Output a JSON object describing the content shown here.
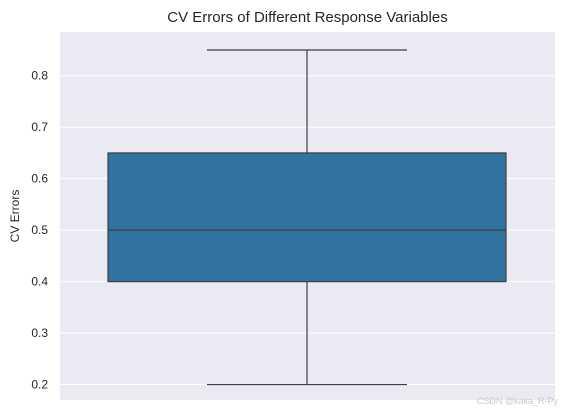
{
  "chart_data": {
    "type": "box",
    "title": "CV Errors of Different Response Variables",
    "xlabel": "",
    "ylabel": "CV Errors",
    "ylim": [
      0.17,
      0.885
    ],
    "yticks": [
      0.2,
      0.3,
      0.4,
      0.5,
      0.6,
      0.7,
      0.8
    ],
    "ytick_labels": [
      "0.2",
      "0.3",
      "0.4",
      "0.5",
      "0.6",
      "0.7",
      "0.8"
    ],
    "grid": true,
    "box": {
      "min": 0.2,
      "q1": 0.4,
      "median": 0.5,
      "q3": 0.65,
      "max": 0.85
    },
    "colors": {
      "background": "#eaeaf2",
      "grid": "#ffffff",
      "box_fill": "#3274a1",
      "line": "#3f3f3f"
    }
  },
  "watermark": "CSDN @kaka_R-Py"
}
